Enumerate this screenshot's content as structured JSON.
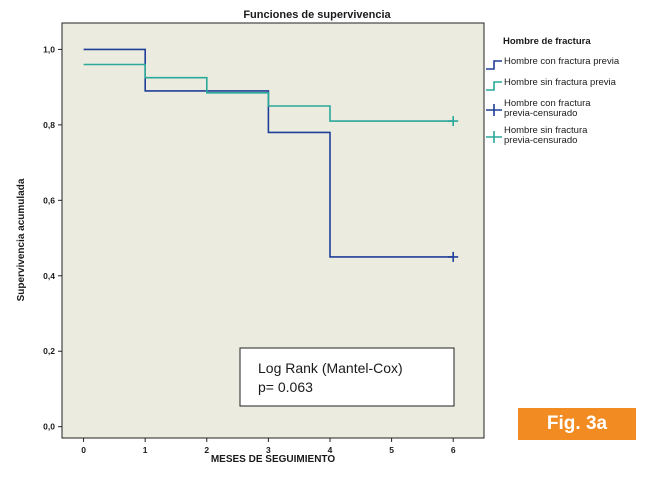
{
  "chart_data": {
    "type": "line",
    "title": "Funciones de supervivencia",
    "xlabel": "MESES DE SEGUIMIENTO",
    "ylabel": "Supervivencia acumulada",
    "xlim": [
      -0.35,
      6.5
    ],
    "ylim": [
      -0.03,
      1.07
    ],
    "x_ticks": [
      0,
      1,
      2,
      3,
      4,
      5,
      6
    ],
    "x_tick_labels": [
      "0",
      "1",
      "2",
      "3",
      "4",
      "5",
      "6"
    ],
    "y_ticks": [
      0.0,
      0.2,
      0.4,
      0.6,
      0.8,
      1.0
    ],
    "y_tick_labels": [
      "0,0",
      "0,2",
      "0,4",
      "0,6",
      "0,8",
      "1,0"
    ],
    "step": true,
    "legend_title": "Hombre de fractura",
    "legend_position": "right",
    "series": [
      {
        "name": "Hombre con fractura previa",
        "color": "#1f3f99",
        "x": [
          0,
          1,
          1,
          3,
          3,
          4,
          4,
          6
        ],
        "y": [
          1.0,
          1.0,
          0.89,
          0.89,
          0.78,
          0.78,
          0.45,
          0.45
        ],
        "censored": [
          {
            "x": 6,
            "y": 0.45
          }
        ]
      },
      {
        "name": "Hombre sin fractura previa",
        "color": "#2aa89a",
        "x": [
          0,
          1,
          1,
          2,
          2,
          3,
          3,
          4,
          4,
          6
        ],
        "y": [
          0.96,
          0.96,
          0.925,
          0.925,
          0.885,
          0.885,
          0.85,
          0.85,
          0.81,
          0.81
        ],
        "censored": [
          {
            "x": 6,
            "y": 0.81
          }
        ]
      }
    ],
    "legend_entries": [
      {
        "label": "Hombre con fractura previa",
        "color": "#1f3f99",
        "marker": "step"
      },
      {
        "label": "Hombre sin fractura previa",
        "color": "#2aa89a",
        "marker": "step"
      },
      {
        "label": [
          "Hombre con fractura",
          "previa-censurado"
        ],
        "color": "#1f3f99",
        "marker": "plus"
      },
      {
        "label": [
          "Hombre sin fractura",
          "previa-censurado"
        ],
        "color": "#2aa89a",
        "marker": "plus"
      }
    ],
    "annotation": {
      "lines": [
        "Log Rank (Mantel-Cox)",
        "p= 0.063"
      ]
    }
  },
  "badge": "Fig. 3a"
}
